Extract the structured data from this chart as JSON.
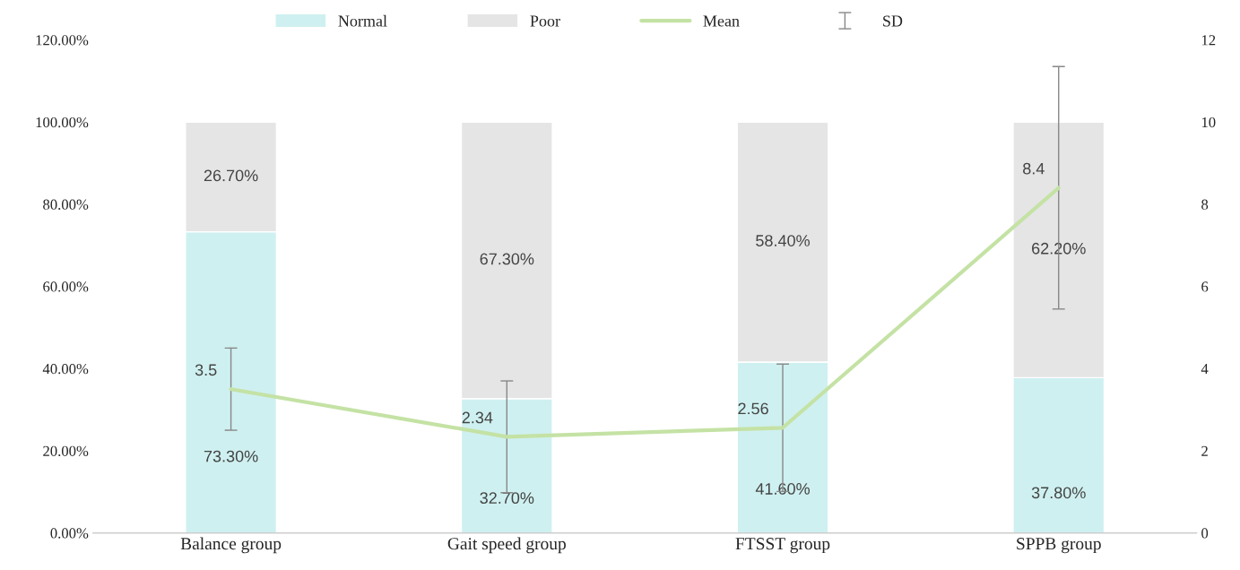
{
  "chart_data": {
    "type": "bar",
    "stacked": true,
    "categories": [
      "Balance group",
      "Gait speed group",
      "FTSST group",
      "SPPB group"
    ],
    "series": [
      {
        "name": "Normal",
        "color": "#cff0f0",
        "values": [
          73.3,
          32.7,
          41.6,
          37.8
        ],
        "value_labels": [
          "73.30%",
          "32.70%",
          "41.60%",
          "37.80%"
        ]
      },
      {
        "name": "Poor",
        "color": "#e5e5e5",
        "values": [
          26.7,
          67.3,
          58.4,
          62.2
        ],
        "value_labels": [
          "26.70%",
          "67.30%",
          "58.40%",
          "62.20%"
        ]
      },
      {
        "name": "Mean",
        "type": "line",
        "axis": "y2",
        "color": "#c4e2a4",
        "values": [
          3.5,
          2.34,
          2.56,
          8.4
        ],
        "errors": [
          1.0,
          1.36,
          1.55,
          2.95
        ],
        "value_labels": [
          "3.5",
          "2.34",
          "2.56",
          "8.4"
        ]
      }
    ],
    "annotations": [
      "SD"
    ],
    "ylim": [
      0,
      120
    ],
    "yticks": [
      {
        "value": 0,
        "label": "0.00%"
      },
      {
        "value": 20,
        "label": "20.00%"
      },
      {
        "value": 40,
        "label": "40.00%"
      },
      {
        "value": 60,
        "label": "60.00%"
      },
      {
        "value": 80,
        "label": "80.00%"
      },
      {
        "value": 100,
        "label": "100.00%"
      },
      {
        "value": 120,
        "label": "120.00%"
      }
    ],
    "y2lim": [
      0,
      12
    ],
    "y2ticks": [
      0,
      2,
      4,
      6,
      8,
      10,
      12
    ],
    "legend": "top",
    "grid": false,
    "marker": "none"
  }
}
